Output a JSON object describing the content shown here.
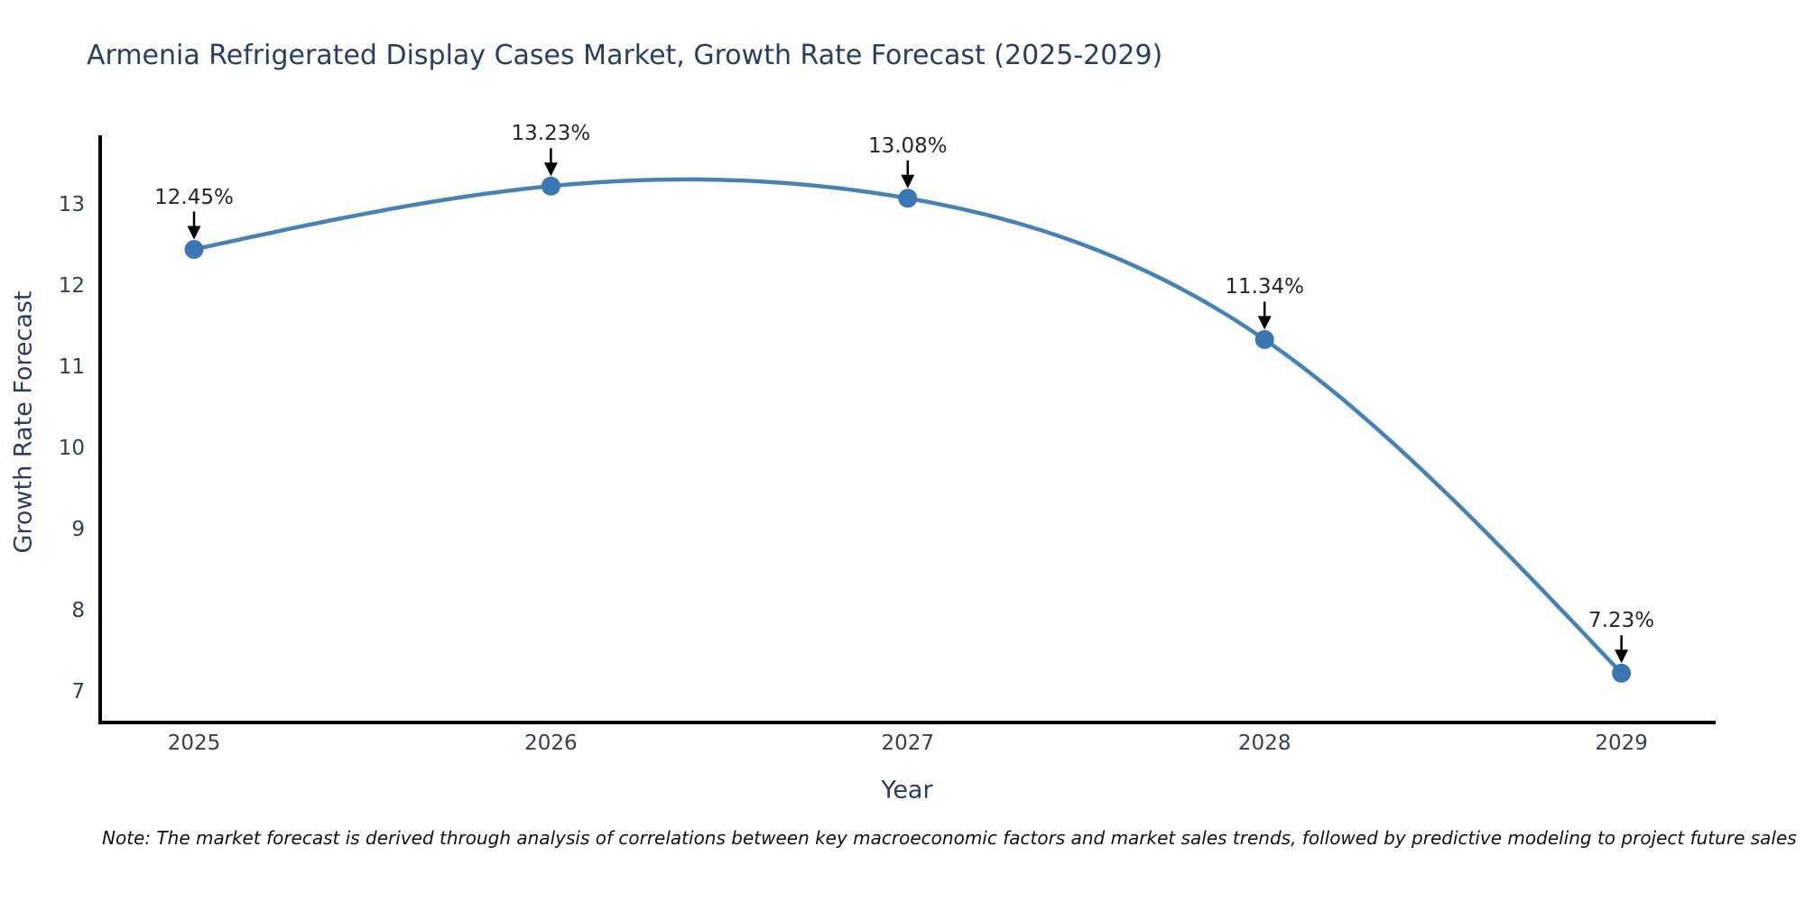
{
  "chart_data": {
    "type": "line",
    "title": "Armenia Refrigerated Display Cases Market, Growth Rate Forecast (2025-2029)",
    "xlabel": "Year",
    "ylabel": "Growth Rate Forecast",
    "categories": [
      "2025",
      "2026",
      "2027",
      "2028",
      "2029"
    ],
    "values": [
      12.45,
      13.23,
      13.08,
      11.34,
      7.23
    ],
    "point_labels": [
      "12.45%",
      "13.23%",
      "13.08%",
      "11.34%",
      "7.23%"
    ],
    "yticks": [
      7,
      8,
      9,
      10,
      11,
      12,
      13
    ],
    "ylim": [
      6.62,
      13.86
    ],
    "grid": false,
    "legend": "none",
    "line_color": "#4682b4",
    "marker_color": "#3a76b0",
    "arrow_color": "#000000",
    "axis_color": "#000000",
    "title_color": "#2a3f5f",
    "smooth": true
  },
  "note": "Note: The market forecast is derived through analysis of correlations between key macroeconomic factors and market sales trends, followed by predictive modeling to project future sales"
}
